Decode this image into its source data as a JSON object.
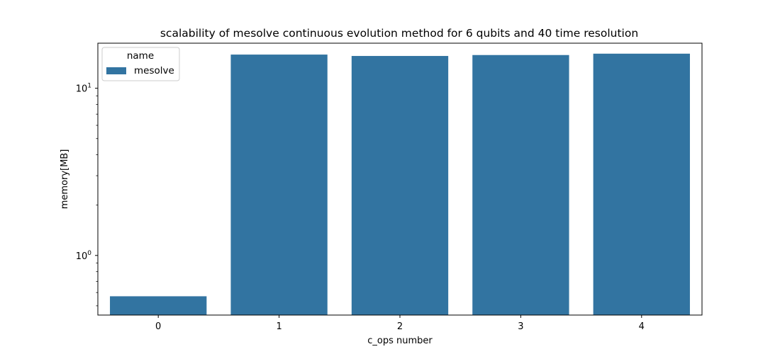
{
  "chart_data": {
    "type": "bar",
    "title": "scalability of mesolve continuous evolution method for 6 qubits and 40 time resolution",
    "xlabel": "c_ops number",
    "ylabel": "memory[MB]",
    "categories": [
      "0",
      "1",
      "2",
      "3",
      "4"
    ],
    "series": [
      {
        "name": "mesolve",
        "color": "#3274a1",
        "values": [
          0.57,
          15.9,
          15.6,
          15.8,
          16.1
        ]
      }
    ],
    "yscale": "log",
    "ylim": [
      0.44,
      18.6
    ],
    "yticks": [
      {
        "value": 1,
        "base": "10",
        "exp": "0"
      },
      {
        "value": 10,
        "base": "10",
        "exp": "1"
      }
    ],
    "legend": {
      "title": "name",
      "placement": "top-left"
    },
    "grid": false
  }
}
